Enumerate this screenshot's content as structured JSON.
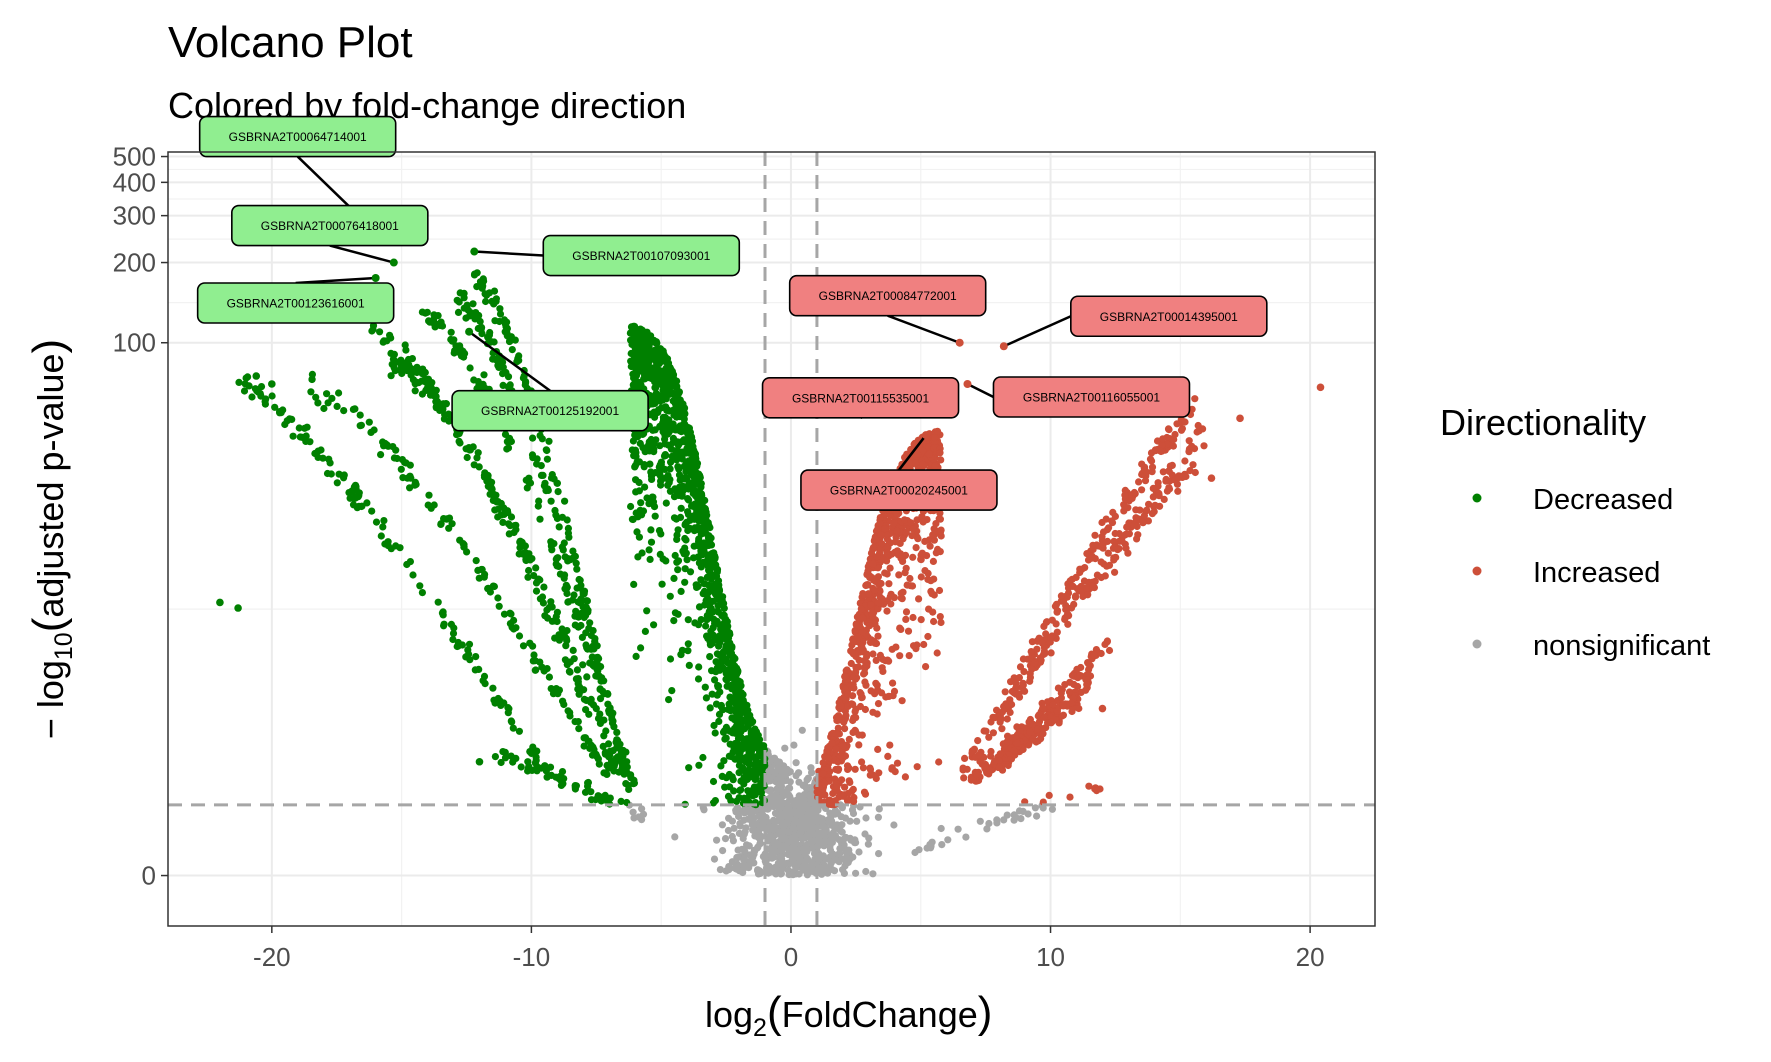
{
  "chart_data": {
    "type": "scatter",
    "title": "Volcano Plot",
    "subtitle": "Colored by fold-change direction",
    "xlabel_base": "log",
    "xlabel_sub": "2",
    "xlabel_arg": "FoldChange",
    "ylabel_prefix": "− log",
    "ylabel_sub": "10",
    "ylabel_arg": "adjusted p-value",
    "x_range": [
      -24,
      22.5
    ],
    "x_ticks": [
      -20,
      -10,
      0,
      10,
      20
    ],
    "y_scale": "pseudo-log (asinh)",
    "y_range": [
      -0.9,
      520
    ],
    "y_ticks": [
      0,
      100,
      200,
      300,
      400,
      500
    ],
    "fc_threshold": 1,
    "p_threshold": 1.3,
    "grid": true,
    "legend": {
      "title": "Directionality",
      "position": "right",
      "entries": [
        {
          "label": "Decreased",
          "color": "#008000"
        },
        {
          "label": "Increased",
          "color": "#cd4f39"
        },
        {
          "label": "nonsignificant",
          "color": "#a6a6a6"
        }
      ]
    },
    "labeled_points": [
      {
        "label": "GSBRNA2T00064714001",
        "x": -16.5,
        "y": 290,
        "group": "Decreased"
      },
      {
        "label": "GSBRNA2T00076418001",
        "x": -15.3,
        "y": 200,
        "group": "Decreased"
      },
      {
        "label": "GSBRNA2T00107093001",
        "x": -12.2,
        "y": 220,
        "group": "Decreased"
      },
      {
        "label": "GSBRNA2T00123616001",
        "x": -16.0,
        "y": 175,
        "group": "Decreased"
      },
      {
        "label": "GSBRNA2T00125192001",
        "x": -12.4,
        "y": 110,
        "group": "Decreased"
      },
      {
        "label": "GSBRNA2T00084772001",
        "x": 6.5,
        "y": 100,
        "group": "Increased"
      },
      {
        "label": "GSBRNA2T00014395001",
        "x": 8.2,
        "y": 97,
        "group": "Increased"
      },
      {
        "label": "GSBRNA2T00115535001",
        "x": 5.3,
        "y": 66,
        "group": "Increased"
      },
      {
        "label": "GSBRNA2T00116055001",
        "x": 6.8,
        "y": 70,
        "group": "Increased"
      },
      {
        "label": "GSBRNA2T00020245001",
        "x": 5.2,
        "y": 45,
        "group": "Increased"
      }
    ],
    "sample_points": [
      {
        "x": -22.0,
        "y": 10.5,
        "group": "Decreased"
      },
      {
        "x": -21.3,
        "y": 10.0,
        "group": "Decreased"
      },
      {
        "x": -20.6,
        "y": 75,
        "group": "Decreased"
      },
      {
        "x": -20.0,
        "y": 70,
        "group": "Decreased"
      },
      {
        "x": 20.4,
        "y": 68,
        "group": "Increased"
      },
      {
        "x": 17.3,
        "y": 52,
        "group": "Increased"
      },
      {
        "x": 16.2,
        "y": 31,
        "group": "Increased"
      },
      {
        "x": 12.0,
        "y": 4.0,
        "group": "Increased"
      },
      {
        "x": -12.0,
        "y": 2.3,
        "group": "Decreased"
      }
    ]
  }
}
